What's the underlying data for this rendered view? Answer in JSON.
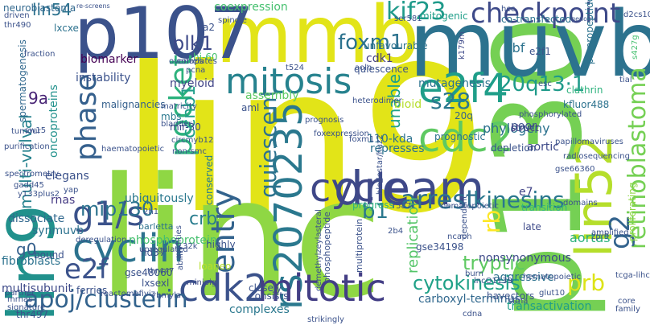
{
  "title": "",
  "words": [
    {
      "text": "lin9",
      "color": "#e2e418"
    },
    {
      "text": "linc",
      "color": "#8fd744"
    },
    {
      "text": "p130",
      "color": "#75d054"
    },
    {
      "text": "muvb",
      "color": "#2c728e"
    },
    {
      "text": "mmb",
      "color": "#e2e418"
    },
    {
      "text": "p107",
      "color": "#3b528b"
    },
    {
      "text": "lin9",
      "color": "#21918c"
    },
    {
      "text": "lin52",
      "color": "#b5de2b"
    },
    {
      "text": "dream",
      "color": "#3e4a89"
    },
    {
      "text": "rs2070235",
      "color": "#2a788e"
    },
    {
      "text": "cdk2",
      "color": "#3b528b"
    },
    {
      "text": "mitotic",
      "color": "#433e85"
    },
    {
      "text": "cdc2",
      "color": "#5ec962"
    },
    {
      "text": "e2f4",
      "color": "#1f9e89"
    },
    {
      "text": "cyclin",
      "color": "#2c728e"
    },
    {
      "text": "cycle",
      "color": "#3f4788"
    },
    {
      "text": "mitosis",
      "color": "#26828e"
    },
    {
      "text": "g1/s",
      "color": "#3b528b"
    },
    {
      "text": "entry",
      "color": "#33638d"
    },
    {
      "text": "pocket",
      "color": "#2db27d"
    },
    {
      "text": "phase",
      "color": "#35608d"
    },
    {
      "text": "checkpoint",
      "color": "#3e4a89"
    },
    {
      "text": "kif23",
      "color": "#1f9a8a"
    },
    {
      "text": "foxm1",
      "color": "#2c728e"
    },
    {
      "text": "retinoblastoma",
      "color": "#75d054"
    },
    {
      "text": "g2",
      "color": "#33638d"
    },
    {
      "text": "prb",
      "color": "#dde318"
    },
    {
      "text": "e2f",
      "color": "#3b528b"
    },
    {
      "text": "apoj/clusterin",
      "color": "#33638d"
    },
    {
      "text": "cytokinesis",
      "color": "#1fa187"
    },
    {
      "text": "arrest",
      "color": "#2d708e"
    },
    {
      "text": "kinesins",
      "color": "#2a788e"
    },
    {
      "text": "20q13·1",
      "color": "#1f9a8a"
    },
    {
      "text": "s28",
      "color": "#2a788e"
    },
    {
      "text": "quiescent",
      "color": "#2c728e"
    },
    {
      "text": "ccnb1",
      "color": "#1f9e89"
    },
    {
      "text": "crb",
      "color": "#287c8e"
    },
    {
      "text": "mip130",
      "color": "#2c728e"
    },
    {
      "text": "tryptic",
      "color": "#5ec962"
    },
    {
      "text": "lin54",
      "color": "#2c728e"
    },
    {
      "text": "plk1",
      "color": "#3e4a89"
    },
    {
      "text": "multi-vulval",
      "color": "#26828e"
    },
    {
      "text": "9a",
      "color": "#482475"
    },
    {
      "text": "g0",
      "color": "#35608d"
    },
    {
      "text": "b1",
      "color": "#2a788e"
    },
    {
      "text": "rb",
      "color": "#fde725"
    },
    {
      "text": "replication",
      "color": "#54c568"
    },
    {
      "text": "unable",
      "color": "#1fa187"
    },
    {
      "text": "coexpression",
      "color": "#46c06f"
    },
    {
      "text": "neuroblastoma",
      "color": "#31688e"
    },
    {
      "text": "rbf",
      "color": "#2c728e"
    },
    {
      "text": "cdk1",
      "color": "#433e85"
    },
    {
      "text": "e2f1",
      "color": "#3b528b"
    },
    {
      "text": "phylogeny",
      "color": "#2c728e"
    },
    {
      "text": "aortic",
      "color": "#3e4a89"
    },
    {
      "text": "aortas",
      "color": "#2db27d"
    },
    {
      "text": "e7",
      "color": "#414487"
    },
    {
      "text": "proliferating",
      "color": "#8fd744"
    },
    {
      "text": "aggressive",
      "color": "#2c728e"
    },
    {
      "text": "nonsynonymous",
      "color": "#3e4a89"
    },
    {
      "text": "carboxyl-terminus",
      "color": "#31688e"
    },
    {
      "text": "complexes",
      "color": "#2a788e"
    },
    {
      "text": "consists",
      "color": "#3b528b"
    },
    {
      "text": "phosphoprotein",
      "color": "#46c06f"
    },
    {
      "text": "ubiquitously",
      "color": "#2a788e"
    },
    {
      "text": "conserved",
      "color": "#287c8e"
    },
    {
      "text": "dissociate",
      "color": "#31688e"
    },
    {
      "text": "fibroblasts",
      "color": "#2c728e"
    },
    {
      "text": "multisubunit",
      "color": "#3e4a89"
    },
    {
      "text": "instability",
      "color": "#3b528b"
    },
    {
      "text": "biomarker",
      "color": "#440154"
    },
    {
      "text": "myeloid",
      "color": "#414487"
    },
    {
      "text": "malignancies",
      "color": "#35608d"
    },
    {
      "text": "oncoproteins",
      "color": "#21918c"
    },
    {
      "text": "elegans",
      "color": "#3b528b"
    },
    {
      "text": "rnas",
      "color": "#443983"
    },
    {
      "text": "synmuvb",
      "color": "#2c728e"
    },
    {
      "text": "mutagenesis",
      "color": "#2c728e"
    },
    {
      "text": "transactivation",
      "color": "#1f9e89"
    },
    {
      "text": "transition",
      "color": "#35b779"
    },
    {
      "text": "progress",
      "color": "#2db27d"
    },
    {
      "text": "bioid",
      "color": "#b5de2b"
    },
    {
      "text": "assembly",
      "color": "#5ec962"
    },
    {
      "text": "represses",
      "color": "#2c728e"
    },
    {
      "text": "110-kda",
      "color": "#2c728e"
    },
    {
      "text": "quiescence",
      "color": "#3b528b"
    },
    {
      "text": "unfavourable",
      "color": "#2c728e"
    },
    {
      "text": "spermatogenesis",
      "color": "#31688e"
    },
    {
      "text": "late",
      "color": "#3e4a89"
    },
    {
      "text": "lxcxe",
      "color": "#2c728e"
    },
    {
      "text": "poor",
      "color": "#3b528b"
    },
    {
      "text": "20q",
      "color": "#33638d"
    },
    {
      "text": "prognostic",
      "color": "#2c728e"
    },
    {
      "text": "depletion",
      "color": "#3b528b"
    },
    {
      "text": "struct",
      "color": "#443983"
    },
    {
      "text": "kfluor488",
      "color": "#2c728e"
    },
    {
      "text": "clathrin",
      "color": "#2db27d"
    },
    {
      "text": "a2",
      "color": "#3b528b"
    },
    {
      "text": "hi-60",
      "color": "#46c06f"
    },
    {
      "text": "aml",
      "color": "#3b528b"
    },
    {
      "text": "mbs",
      "color": "#2a788e"
    },
    {
      "text": "mir-30",
      "color": "#3e4a89"
    },
    {
      "text": "circmyb12",
      "color": "#3b528b"
    },
    {
      "text": "barletta",
      "color": "#2c728e"
    },
    {
      "text": "thr497",
      "color": "#3b528b"
    },
    {
      "text": "ser581",
      "color": "#3b528b"
    },
    {
      "text": "mitogenic",
      "color": "#1f9e89"
    },
    {
      "text": "co-transfected",
      "color": "#2c728e"
    },
    {
      "text": "hcc",
      "color": "#3b528b"
    },
    {
      "text": "genome",
      "color": "#3b528b"
    },
    {
      "text": "d2cs107",
      "color": "#3b528b"
    },
    {
      "text": "s427g",
      "color": "#46c06f"
    },
    {
      "text": "k179m",
      "color": "#3e4a89"
    },
    {
      "text": "prepropeptide",
      "color": "#2c728e"
    },
    {
      "text": "hd37",
      "color": "#3b528b"
    },
    {
      "text": "gse48060",
      "color": "#3b528b"
    },
    {
      "text": "reactomefiviz",
      "color": "#3b528b"
    },
    {
      "text": "gse34198",
      "color": "#3b528b"
    },
    {
      "text": "gse66360",
      "color": "#3b528b"
    },
    {
      "text": "ncaph",
      "color": "#3b528b"
    },
    {
      "text": "havectors",
      "color": "#3b528b"
    },
    {
      "text": "lncO1139",
      "color": "#3b528b"
    },
    {
      "text": "hematopoietic",
      "color": "#3b528b"
    },
    {
      "text": "burn",
      "color": "#3b528b"
    },
    {
      "text": "glut10",
      "color": "#3b528b"
    },
    {
      "text": "tcga-lihc",
      "color": "#3b528b"
    },
    {
      "text": "core",
      "color": "#3b528b"
    },
    {
      "text": "family",
      "color": "#3b528b"
    },
    {
      "text": "highly",
      "color": "#3b528b"
    },
    {
      "text": "closely",
      "color": "#3b528b"
    },
    {
      "text": "minipig",
      "color": "#3e4a89"
    },
    {
      "text": "loaneo",
      "color": "#b5de2b"
    },
    {
      "text": "lxsexl",
      "color": "#3b528b"
    },
    {
      "text": "rbmyla",
      "color": "#3b528b"
    },
    {
      "text": "upregulated",
      "color": "#3b528b"
    },
    {
      "text": "strikingly",
      "color": "#3b528b"
    },
    {
      "text": "thr447",
      "color": "#3b528b"
    },
    {
      "text": "ferries",
      "color": "#3b528b"
    },
    {
      "text": "bound",
      "color": "#3b528b"
    },
    {
      "text": "mrnas",
      "color": "#3b528b"
    },
    {
      "text": "signature",
      "color": "#3b528b"
    },
    {
      "text": "partner",
      "color": "#3b528b"
    },
    {
      "text": "deregulation",
      "color": "#3b528b"
    },
    {
      "text": "non-smc",
      "color": "#3b528b"
    },
    {
      "text": "bladder",
      "color": "#3b528b"
    },
    {
      "text": "matricity",
      "color": "#3b528b"
    },
    {
      "text": "pcna",
      "color": "#3b528b"
    },
    {
      "text": "overlaps",
      "color": "#3b528b"
    },
    {
      "text": "correlates",
      "color": "#3b528b"
    },
    {
      "text": "spindle",
      "color": "#3b528b"
    },
    {
      "text": "fraction",
      "color": "#3b528b"
    },
    {
      "text": "driven",
      "color": "#3b528b"
    },
    {
      "text": "thr490",
      "color": "#3b528b"
    },
    {
      "text": "purification",
      "color": "#3b528b"
    },
    {
      "text": "tumour",
      "color": "#3b528b"
    },
    {
      "text": "phosphorylated",
      "color": "#3b528b"
    },
    {
      "text": "papillomaviruses",
      "color": "#3b528b"
    },
    {
      "text": "radiosequencing",
      "color": "#3b528b"
    },
    {
      "text": "prognosis",
      "color": "#3b528b"
    },
    {
      "text": "foxexpression",
      "color": "#3b528b"
    },
    {
      "text": "dependent",
      "color": "#3b528b"
    },
    {
      "text": "sirna",
      "color": "#3b528b"
    },
    {
      "text": "domains",
      "color": "#3b528b"
    },
    {
      "text": "amplified",
      "color": "#3b528b"
    },
    {
      "text": "esc",
      "color": "#3b528b"
    },
    {
      "text": "r587c",
      "color": "#3b528b"
    },
    {
      "text": "hematopoietic",
      "color": "#3b528b"
    },
    {
      "text": "heterodimer",
      "color": "#3b528b"
    },
    {
      "text": "re-screens",
      "color": "#3b528b"
    },
    {
      "text": "t524",
      "color": "#3b528b"
    },
    {
      "text": "aoln",
      "color": "#3b528b"
    },
    {
      "text": "zpr9",
      "color": "#3b528b"
    },
    {
      "text": "sw15",
      "color": "#3b528b"
    },
    {
      "text": "tial",
      "color": "#3b528b"
    },
    {
      "text": "cdna",
      "color": "#3b528b"
    },
    {
      "text": "yap",
      "color": "#3b528b"
    },
    {
      "text": "2b4",
      "color": "#3b528b"
    },
    {
      "text": "32k",
      "color": "#3b528b"
    },
    {
      "text": "2h1",
      "color": "#3b528b"
    },
    {
      "text": "y133plus2",
      "color": "#3b528b"
    },
    {
      "text": "gadd45",
      "color": "#3b528b"
    },
    {
      "text": "spectrometry",
      "color": "#3b528b"
    },
    {
      "text": "foxm1",
      "color": "#3b528b"
    },
    {
      "text": "hlodestar/huz2",
      "color": "#3b528b"
    },
    {
      "text": "haematopoietic",
      "color": "#3b528b"
    },
    {
      "text": "avidities",
      "color": "#3b528b"
    },
    {
      "text": "ability",
      "color": "#3b528b"
    },
    {
      "text": "multiprotein",
      "color": "#3b528b"
    },
    {
      "text": "phosphopeptide",
      "color": "#3b528b"
    },
    {
      "text": "demethylzeylasteral",
      "color": "#3b528b"
    }
  ]
}
